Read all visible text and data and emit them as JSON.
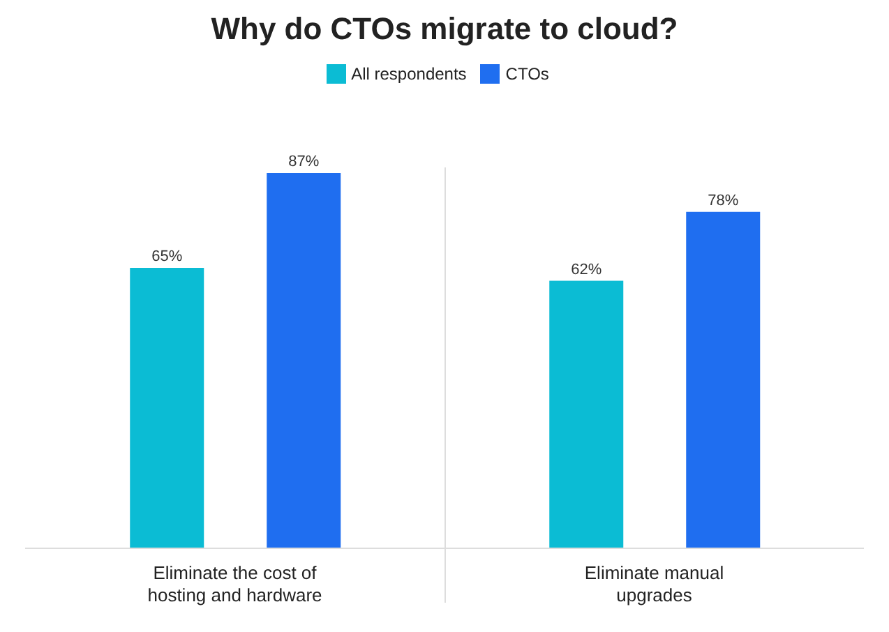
{
  "chart_data": {
    "type": "bar",
    "title": "Why do CTOs migrate to cloud?",
    "categories": [
      "Eliminate the cost of hosting and hardware",
      "Eliminate manual upgrades"
    ],
    "series": [
      {
        "name": "All respondents",
        "color": "#0bbcd4",
        "values": [
          65,
          62
        ],
        "value_labels": [
          "65%",
          "62%"
        ]
      },
      {
        "name": "CTOs",
        "color": "#1f6ef0",
        "values": [
          87,
          78
        ],
        "value_labels": [
          "87%",
          "78%"
        ]
      }
    ],
    "legend": "top",
    "grid": "x"
  }
}
